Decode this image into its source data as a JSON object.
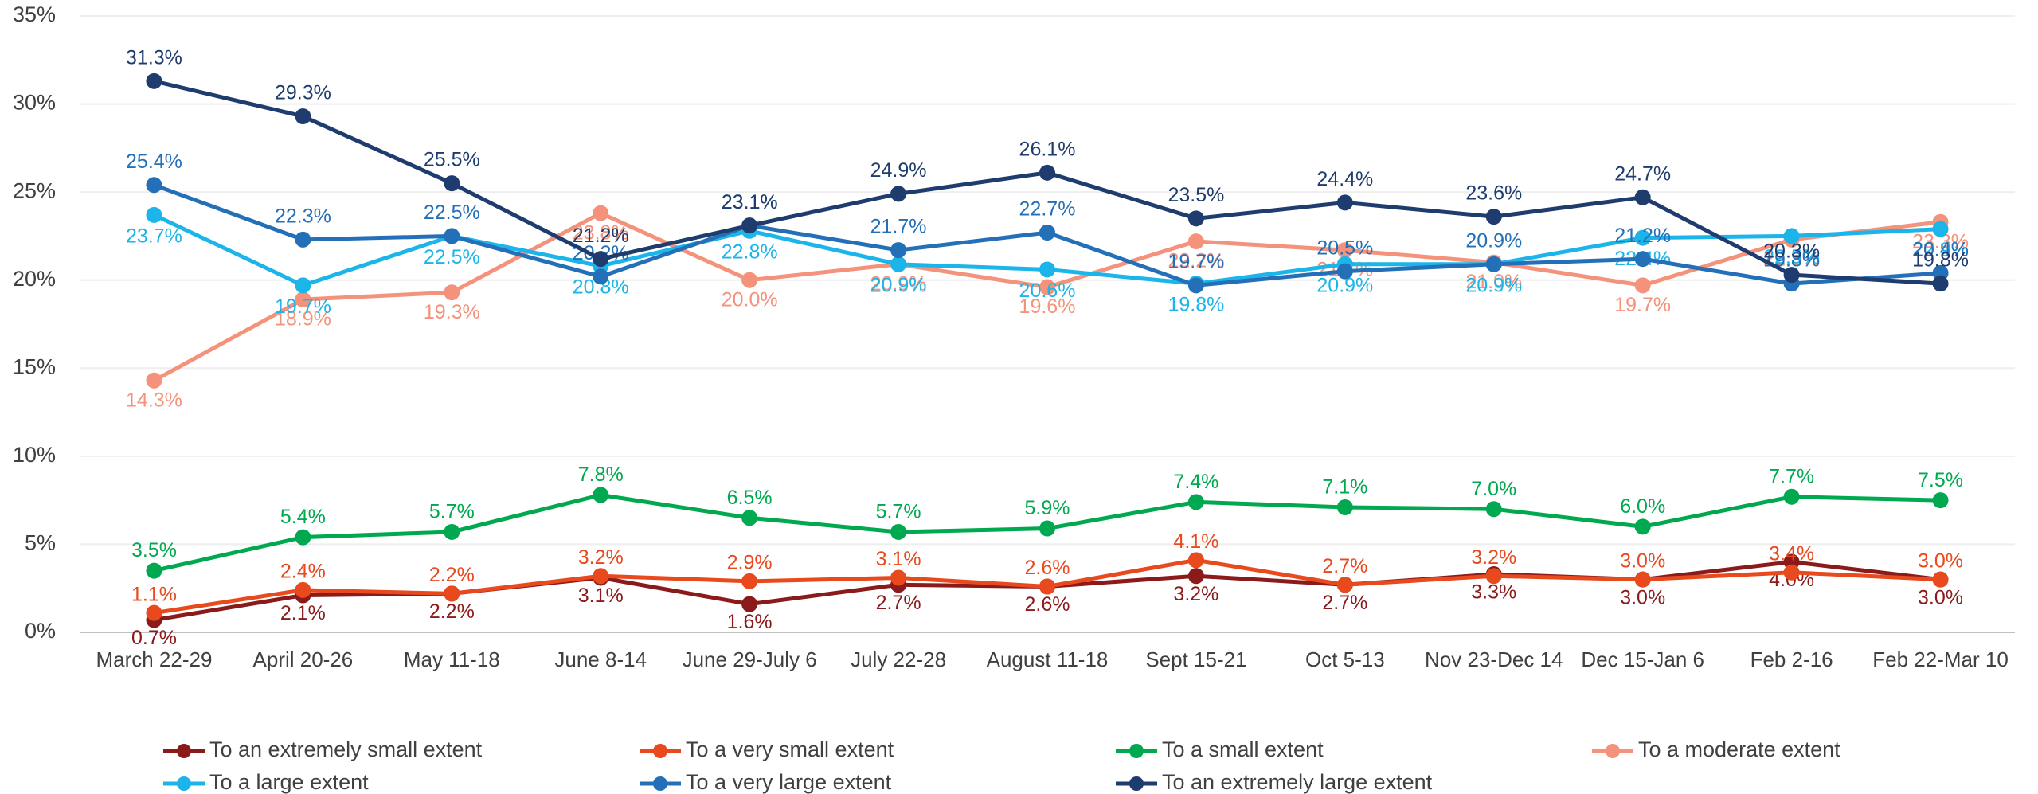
{
  "chart_data": {
    "type": "line",
    "categories": [
      "March 22-29",
      "April 20-26",
      "May 11-18",
      "June 8-14",
      "June 29-July 6",
      "July 22-28",
      "August 11-18",
      "Sept 15-21",
      "Oct 5-13",
      "Nov 23-Dec 14",
      "Dec 15-Jan 6",
      "Feb 2-16",
      "Feb 22-Mar 10"
    ],
    "ylim": [
      0,
      35
    ],
    "yticks": [
      {
        "value": 0,
        "label": "0%"
      },
      {
        "value": 5,
        "label": "5%"
      },
      {
        "value": 10,
        "label": "10%"
      },
      {
        "value": 15,
        "label": "15%"
      },
      {
        "value": 20,
        "label": "20%"
      },
      {
        "value": 25,
        "label": "25%"
      },
      {
        "value": 30,
        "label": "30%"
      },
      {
        "value": 35,
        "label": "35%"
      }
    ],
    "grid": true,
    "legend": "bottom",
    "series": [
      {
        "name": "To an extremely small extent",
        "color": "#8b1a1a",
        "values": [
          0.7,
          2.1,
          2.2,
          3.1,
          1.6,
          2.7,
          2.6,
          3.2,
          2.7,
          3.3,
          3.0,
          4.0,
          3.0
        ],
        "value_labels": [
          "0.7%",
          "2.1%",
          "2.2%",
          "3.1%",
          "1.6%",
          "2.7%",
          "2.6%",
          "3.2%",
          "2.7%",
          "3.3%",
          "3.0%",
          "4.0%",
          "3.0%"
        ]
      },
      {
        "name": "To a very small extent",
        "color": "#e8491d",
        "values": [
          1.1,
          2.4,
          2.2,
          3.2,
          2.9,
          3.1,
          2.6,
          4.1,
          2.7,
          3.2,
          3.0,
          3.4,
          3.0
        ],
        "value_labels": [
          "1.1%",
          "2.4%",
          "2.2%",
          "3.2%",
          "2.9%",
          "3.1%",
          "2.6%",
          "4.1%",
          "2.7%",
          "3.2%",
          "3.0%",
          "3.4%",
          "3.0%"
        ]
      },
      {
        "name": "To a small extent",
        "color": "#00a94f",
        "values": [
          3.5,
          5.4,
          5.7,
          7.8,
          6.5,
          5.7,
          5.9,
          7.4,
          7.1,
          7.0,
          6.0,
          7.7,
          7.5
        ],
        "value_labels": [
          "3.5%",
          "5.4%",
          "5.7%",
          "7.8%",
          "6.5%",
          "5.7%",
          "5.9%",
          "7.4%",
          "7.1%",
          "7.0%",
          "6.0%",
          "7.7%",
          "7.5%"
        ]
      },
      {
        "name": "To a moderate extent",
        "color": "#f4927b",
        "values": [
          14.3,
          18.9,
          19.3,
          23.8,
          20.0,
          20.9,
          19.6,
          22.2,
          21.7,
          21.0,
          19.7,
          22.3,
          23.3
        ],
        "value_labels": [
          "14.3%",
          "18.9%",
          "19.3%",
          "23.8%",
          "20.0%",
          "20.9%",
          "19.6%",
          "22.2%",
          "21.7%",
          "21.0%",
          "19.7%",
          "22.3%",
          "23.3%"
        ]
      },
      {
        "name": "To a large extent",
        "color": "#1cb5ea",
        "values": [
          23.7,
          19.7,
          22.5,
          20.8,
          22.8,
          20.9,
          20.6,
          19.8,
          20.9,
          20.9,
          22.4,
          22.5,
          22.9
        ],
        "value_labels": [
          "23.7%",
          "19.7%",
          "22.5%",
          "20.8%",
          "22.8%",
          "20.9%",
          "20.6%",
          "19.8%",
          "20.9%",
          "20.9%",
          "22.4%",
          "22.5%",
          "22.9%"
        ]
      },
      {
        "name": "To a very large extent",
        "color": "#2470b8",
        "values": [
          25.4,
          22.3,
          22.5,
          20.2,
          23.1,
          21.7,
          22.7,
          19.7,
          20.5,
          20.9,
          21.2,
          19.8,
          20.4
        ],
        "value_labels": [
          "25.4%",
          "22.3%",
          "22.5%",
          "20.2%",
          "23.1%",
          "21.7%",
          "22.7%",
          "19.7%",
          "20.5%",
          "20.9%",
          "21.2%",
          "19.8%",
          "20.4%"
        ]
      },
      {
        "name": "To an extremely large extent",
        "color": "#1f3c6e",
        "values": [
          31.3,
          29.3,
          25.5,
          21.2,
          23.1,
          24.9,
          26.1,
          23.5,
          24.4,
          23.6,
          24.7,
          20.3,
          19.8
        ],
        "value_labels": [
          "31.3%",
          "29.3%",
          "25.5%",
          "21.2%",
          "23.1%",
          "24.9%",
          "26.1%",
          "23.5%",
          "24.4%",
          "23.6%",
          "24.7%",
          "20.3%",
          "19.8%"
        ]
      }
    ]
  }
}
